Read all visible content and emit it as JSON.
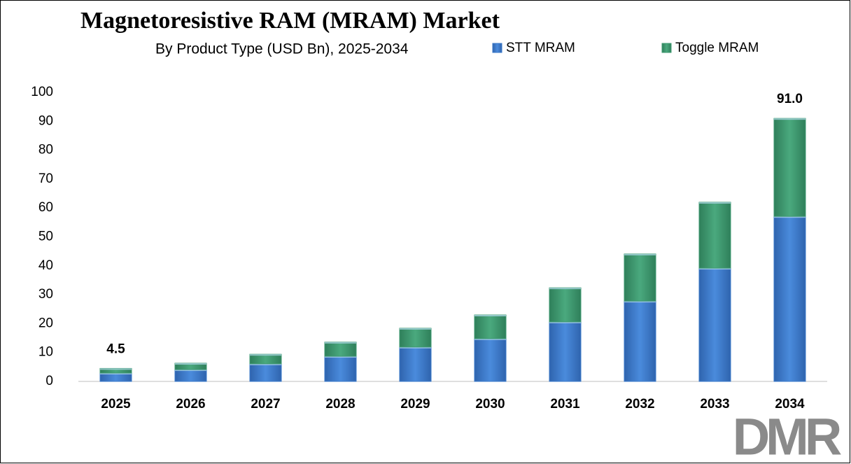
{
  "chart_data": {
    "type": "stacked-bar",
    "title": "Magnetoresistive RAM (MRAM) Market",
    "subtitle": "By Product Type (USD Bn), 2025-2034",
    "categories": [
      "2025",
      "2026",
      "2027",
      "2028",
      "2029",
      "2030",
      "2031",
      "2032",
      "2033",
      "2034"
    ],
    "series": [
      {
        "name": "STT MRAM",
        "color": "#3a78c9",
        "values": [
          2.9,
          4.1,
          6.1,
          8.7,
          11.9,
          14.8,
          20.6,
          27.8,
          39.2,
          57.1
        ]
      },
      {
        "name": "Toggle MRAM",
        "color": "#3e9a70",
        "values": [
          1.6,
          2.2,
          3.3,
          4.9,
          6.5,
          8.2,
          11.8,
          16.3,
          22.8,
          33.9
        ]
      }
    ],
    "annotations": [
      {
        "category_index": 0,
        "value": 4.5
      },
      {
        "category_index": 9,
        "value": 91,
        "label": "91.0"
      }
    ],
    "ylim": [
      0,
      100
    ],
    "yticks": [
      0,
      10,
      20,
      30,
      40,
      50,
      60,
      70,
      80,
      90,
      100
    ],
    "legend": "top-right",
    "logo": "DMR"
  }
}
